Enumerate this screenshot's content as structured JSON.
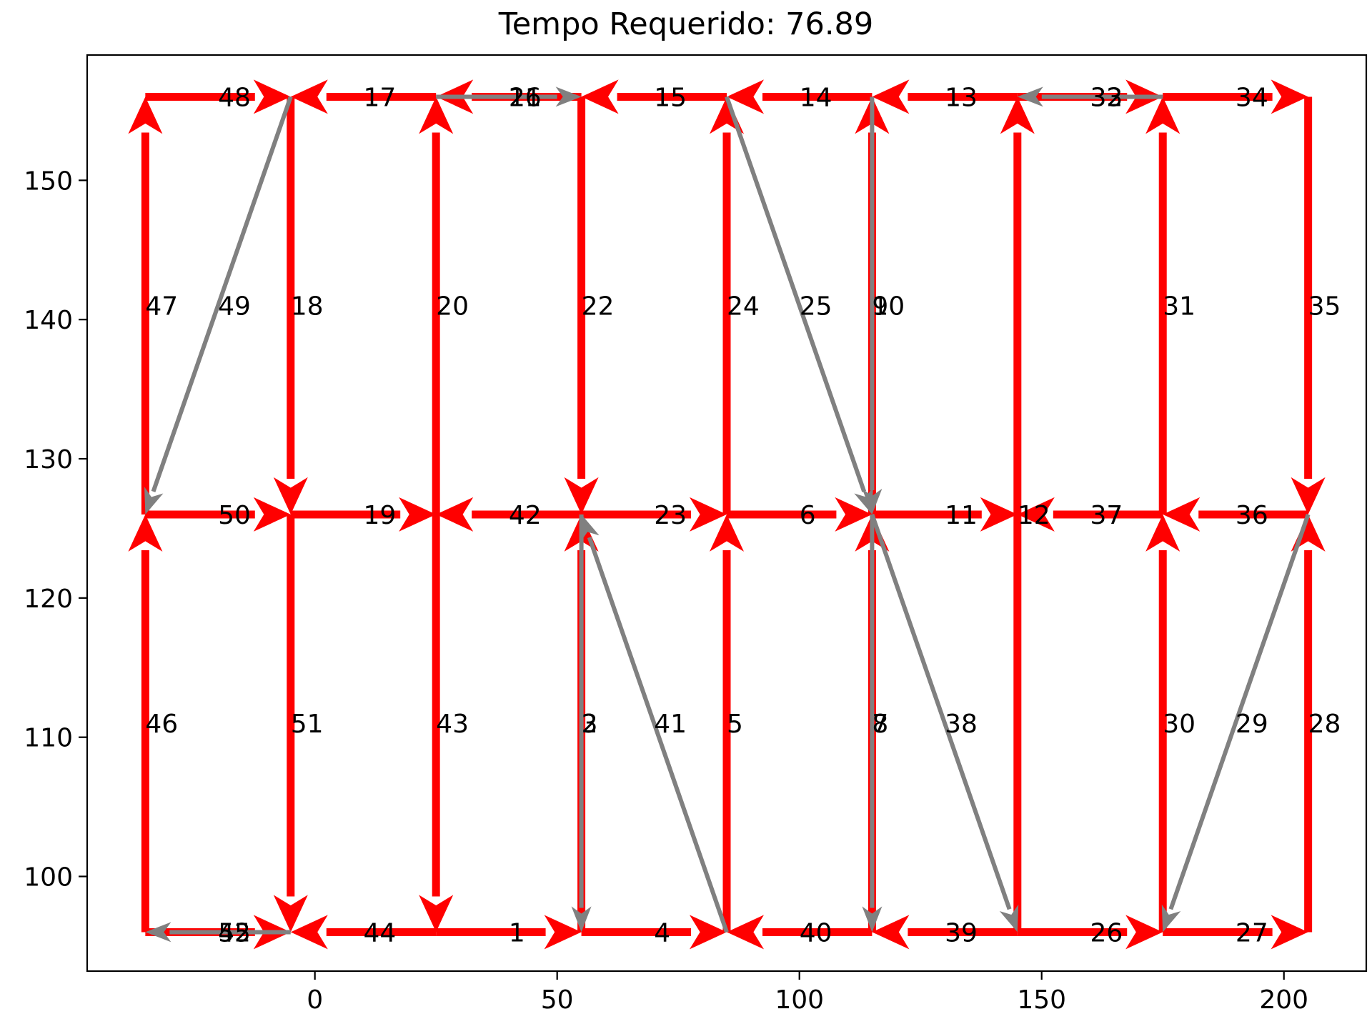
{
  "chart_data": {
    "type": "network-route",
    "title": "Tempo Requerido: 76.89",
    "xlabel": "",
    "ylabel": "",
    "xlim": [
      -47,
      217
    ],
    "ylim": [
      93.2,
      159
    ],
    "xticks": [
      0,
      50,
      100,
      150,
      200
    ],
    "yticks": [
      100,
      110,
      120,
      130,
      140,
      150
    ],
    "grid": false,
    "colors": {
      "required": "#ff0000",
      "deadhead": "#808080"
    },
    "edges": [
      {
        "label": "1",
        "kind": "required",
        "from": [
          25,
          96
        ],
        "to": [
          55,
          96
        ]
      },
      {
        "label": "2",
        "kind": "deadhead",
        "from": [
          55,
          126
        ],
        "to": [
          55,
          96
        ]
      },
      {
        "label": "3",
        "kind": "required",
        "from": [
          55,
          96
        ],
        "to": [
          55,
          126
        ]
      },
      {
        "label": "4",
        "kind": "required",
        "from": [
          55,
          96
        ],
        "to": [
          85,
          96
        ]
      },
      {
        "label": "5",
        "kind": "required",
        "from": [
          85,
          96
        ],
        "to": [
          85,
          126
        ]
      },
      {
        "label": "6",
        "kind": "required",
        "from": [
          85,
          126
        ],
        "to": [
          115,
          126
        ]
      },
      {
        "label": "7",
        "kind": "deadhead",
        "from": [
          115,
          126
        ],
        "to": [
          115,
          96
        ]
      },
      {
        "label": "8",
        "kind": "required",
        "from": [
          115,
          96
        ],
        "to": [
          115,
          126
        ]
      },
      {
        "label": "9",
        "kind": "deadhead",
        "from": [
          115,
          156
        ],
        "to": [
          115,
          126
        ]
      },
      {
        "label": "10",
        "kind": "required",
        "from": [
          115,
          126
        ],
        "to": [
          115,
          156
        ]
      },
      {
        "label": "11",
        "kind": "required",
        "from": [
          115,
          126
        ],
        "to": [
          145,
          126
        ]
      },
      {
        "label": "12",
        "kind": "required",
        "from": [
          145,
          96
        ],
        "to": [
          145,
          156
        ]
      },
      {
        "label": "13",
        "kind": "required",
        "from": [
          145,
          156
        ],
        "to": [
          115,
          156
        ]
      },
      {
        "label": "14",
        "kind": "required",
        "from": [
          115,
          156
        ],
        "to": [
          85,
          156
        ]
      },
      {
        "label": "15",
        "kind": "required",
        "from": [
          85,
          156
        ],
        "to": [
          55,
          156
        ]
      },
      {
        "label": "16",
        "kind": "deadhead",
        "from": [
          25,
          156
        ],
        "to": [
          55,
          156
        ]
      },
      {
        "label": "17",
        "kind": "required",
        "from": [
          25,
          156
        ],
        "to": [
          -5,
          156
        ]
      },
      {
        "label": "18",
        "kind": "required",
        "from": [
          -5,
          156
        ],
        "to": [
          -5,
          126
        ]
      },
      {
        "label": "19",
        "kind": "required",
        "from": [
          -5,
          126
        ],
        "to": [
          25,
          126
        ]
      },
      {
        "label": "20",
        "kind": "required",
        "from": [
          25,
          126
        ],
        "to": [
          25,
          156
        ]
      },
      {
        "label": "21",
        "kind": "required",
        "from": [
          55,
          156
        ],
        "to": [
          25,
          156
        ]
      },
      {
        "label": "22",
        "kind": "required",
        "from": [
          55,
          156
        ],
        "to": [
          55,
          126
        ]
      },
      {
        "label": "23",
        "kind": "required",
        "from": [
          55,
          126
        ],
        "to": [
          85,
          126
        ]
      },
      {
        "label": "24",
        "kind": "required",
        "from": [
          85,
          126
        ],
        "to": [
          85,
          156
        ]
      },
      {
        "label": "25",
        "kind": "deadhead",
        "from": [
          85,
          156
        ],
        "to": [
          115,
          126
        ]
      },
      {
        "label": "26",
        "kind": "required",
        "from": [
          145,
          96
        ],
        "to": [
          175,
          96
        ]
      },
      {
        "label": "27",
        "kind": "required",
        "from": [
          175,
          96
        ],
        "to": [
          205,
          96
        ]
      },
      {
        "label": "28",
        "kind": "required",
        "from": [
          205,
          96
        ],
        "to": [
          205,
          126
        ]
      },
      {
        "label": "29",
        "kind": "deadhead",
        "from": [
          205,
          126
        ],
        "to": [
          175,
          96
        ]
      },
      {
        "label": "30",
        "kind": "required",
        "from": [
          175,
          96
        ],
        "to": [
          175,
          126
        ]
      },
      {
        "label": "31",
        "kind": "required",
        "from": [
          175,
          126
        ],
        "to": [
          175,
          156
        ]
      },
      {
        "label": "32",
        "kind": "deadhead",
        "from": [
          175,
          156
        ],
        "to": [
          145,
          156
        ]
      },
      {
        "label": "33",
        "kind": "required",
        "from": [
          145,
          156
        ],
        "to": [
          175,
          156
        ]
      },
      {
        "label": "34",
        "kind": "required",
        "from": [
          175,
          156
        ],
        "to": [
          205,
          156
        ]
      },
      {
        "label": "35",
        "kind": "required",
        "from": [
          205,
          156
        ],
        "to": [
          205,
          126
        ]
      },
      {
        "label": "36",
        "kind": "required",
        "from": [
          205,
          126
        ],
        "to": [
          175,
          126
        ]
      },
      {
        "label": "37",
        "kind": "required",
        "from": [
          175,
          126
        ],
        "to": [
          145,
          126
        ]
      },
      {
        "label": "38",
        "kind": "deadhead",
        "from": [
          115,
          126
        ],
        "to": [
          145,
          96
        ]
      },
      {
        "label": "39",
        "kind": "required",
        "from": [
          145,
          96
        ],
        "to": [
          115,
          96
        ]
      },
      {
        "label": "40",
        "kind": "required",
        "from": [
          115,
          96
        ],
        "to": [
          85,
          96
        ]
      },
      {
        "label": "41",
        "kind": "deadhead",
        "from": [
          85,
          96
        ],
        "to": [
          55,
          126
        ]
      },
      {
        "label": "42",
        "kind": "required",
        "from": [
          55,
          126
        ],
        "to": [
          25,
          126
        ]
      },
      {
        "label": "43",
        "kind": "required",
        "from": [
          25,
          126
        ],
        "to": [
          25,
          96
        ]
      },
      {
        "label": "44",
        "kind": "required",
        "from": [
          25,
          96
        ],
        "to": [
          -5,
          96
        ]
      },
      {
        "label": "45",
        "kind": "required",
        "from": [
          -35,
          96
        ],
        "to": [
          -5,
          96
        ]
      },
      {
        "label": "46",
        "kind": "required",
        "from": [
          -35,
          96
        ],
        "to": [
          -35,
          126
        ]
      },
      {
        "label": "47",
        "kind": "required",
        "from": [
          -35,
          126
        ],
        "to": [
          -35,
          156
        ]
      },
      {
        "label": "48",
        "kind": "required",
        "from": [
          -35,
          156
        ],
        "to": [
          -5,
          156
        ]
      },
      {
        "label": "49",
        "kind": "deadhead",
        "from": [
          -5,
          156
        ],
        "to": [
          -35,
          126
        ]
      },
      {
        "label": "50",
        "kind": "required",
        "from": [
          -35,
          126
        ],
        "to": [
          -5,
          126
        ]
      },
      {
        "label": "51",
        "kind": "required",
        "from": [
          -5,
          126
        ],
        "to": [
          -5,
          96
        ]
      },
      {
        "label": "52",
        "kind": "deadhead",
        "from": [
          -5,
          96
        ],
        "to": [
          -35,
          96
        ]
      }
    ]
  }
}
